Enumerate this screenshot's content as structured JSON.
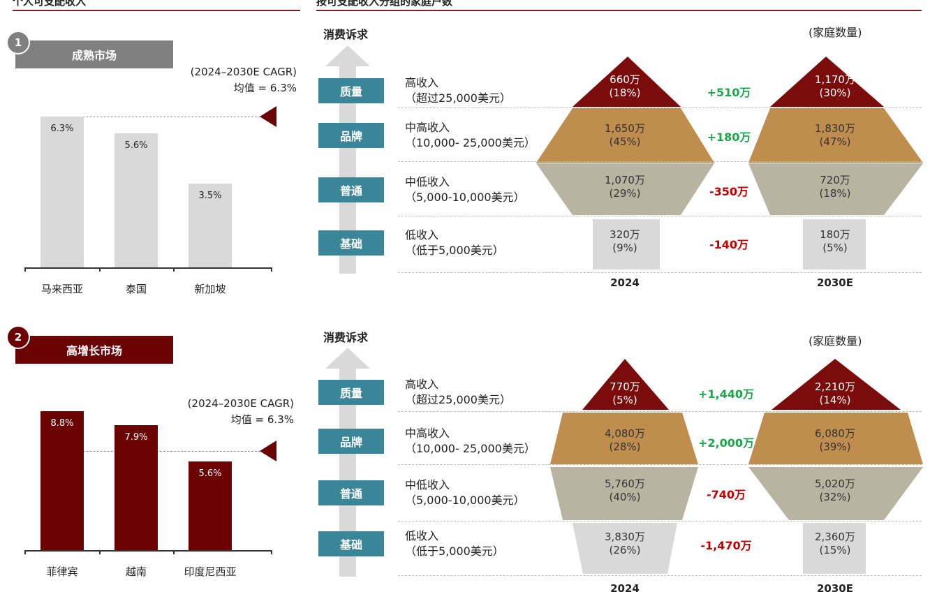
{
  "colors": {
    "dark_red": "#6b0303",
    "grey_banner": "#808080",
    "light_bar": "#d9d9d9",
    "teal": "#3a8597",
    "quality": "#7b0c0c",
    "brand": "#bf8e4f",
    "normal": "#b9b4a1",
    "basic": "#d9d9d9",
    "positive": "#1aa64a",
    "negative": "#c00000"
  },
  "headers": {
    "left": "个人可支配收入",
    "right": "按可支配收入分组的家庭户数"
  },
  "chart_data": [
    {
      "type": "bar",
      "title": "成熟市场",
      "index": "1",
      "categories": [
        "马来西亚",
        "泰国",
        "新加坡"
      ],
      "values": [
        6.3,
        5.6,
        3.5
      ],
      "value_labels": [
        "6.3%",
        "5.6%",
        "3.5%"
      ],
      "reference": {
        "value": 6.3,
        "label_line1": "(2024–2030E CAGR)",
        "label_line2": "均值 = 6.3%"
      },
      "ylim": [
        0,
        10
      ]
    },
    {
      "type": "bar",
      "title": "高增长市场",
      "index": "2",
      "categories": [
        "菲律宾",
        "越南",
        "印度尼西亚"
      ],
      "values": [
        8.8,
        7.9,
        5.6
      ],
      "value_labels": [
        "8.8%",
        "7.9%",
        "5.6%"
      ],
      "reference": {
        "value": 6.3,
        "label_line1": "(2024–2030E CAGR)",
        "label_line2": "均值 = 6.3%"
      },
      "ylim": [
        0,
        10
      ]
    },
    {
      "type": "table",
      "axis_label": "消费诉求",
      "unit_label": "(家庭数量)",
      "years": [
        "2024",
        "2030E"
      ],
      "rows": [
        {
          "tier": "质量",
          "income": "高收入",
          "range": "（超过25,000美元）",
          "v2024": "660万",
          "p2024": "(18%)",
          "delta": "+510万",
          "v2030": "1,170万",
          "p2030": "(30%)"
        },
        {
          "tier": "品牌",
          "income": "中高收入",
          "range": "（10,000- 25,000美元）",
          "v2024": "1,650万",
          "p2024": "(45%)",
          "delta": "+180万",
          "v2030": "1,830万",
          "p2030": "(47%)"
        },
        {
          "tier": "普通",
          "income": "中低收入",
          "range": "（5,000-10,000美元）",
          "v2024": "1,070万",
          "p2024": "(29%)",
          "delta": "-350万",
          "v2030": "720万",
          "p2030": "(18%)"
        },
        {
          "tier": "基础",
          "income": "低收入",
          "range": "（低于5,000美元）",
          "v2024": "320万",
          "p2024": "(9%)",
          "delta": "-140万",
          "v2030": "180万",
          "p2030": "(5%)"
        }
      ]
    },
    {
      "type": "table",
      "axis_label": "消费诉求",
      "unit_label": "(家庭数量)",
      "years": [
        "2024",
        "2030E"
      ],
      "rows": [
        {
          "tier": "质量",
          "income": "高收入",
          "range": "（超过25,000美元）",
          "v2024": "770万",
          "p2024": "(5%)",
          "delta": "+1,440万",
          "v2030": "2,210万",
          "p2030": "(14%)"
        },
        {
          "tier": "品牌",
          "income": "中高收入",
          "range": "（10,000- 25,000美元）",
          "v2024": "4,080万",
          "p2024": "(28%)",
          "delta": "+2,000万",
          "v2030": "6,080万",
          "p2030": "(39%)"
        },
        {
          "tier": "普通",
          "income": "中低收入",
          "range": "（5,000-10,000美元）",
          "v2024": "5,760万",
          "p2024": "(40%)",
          "delta": "-740万",
          "v2030": "5,020万",
          "p2030": "(32%)"
        },
        {
          "tier": "基础",
          "income": "低收入",
          "range": "（低于5,000美元）",
          "v2024": "3,830万",
          "p2024": "(26%)",
          "delta": "-1,470万",
          "v2030": "2,360万",
          "p2030": "(15%)"
        }
      ]
    }
  ]
}
